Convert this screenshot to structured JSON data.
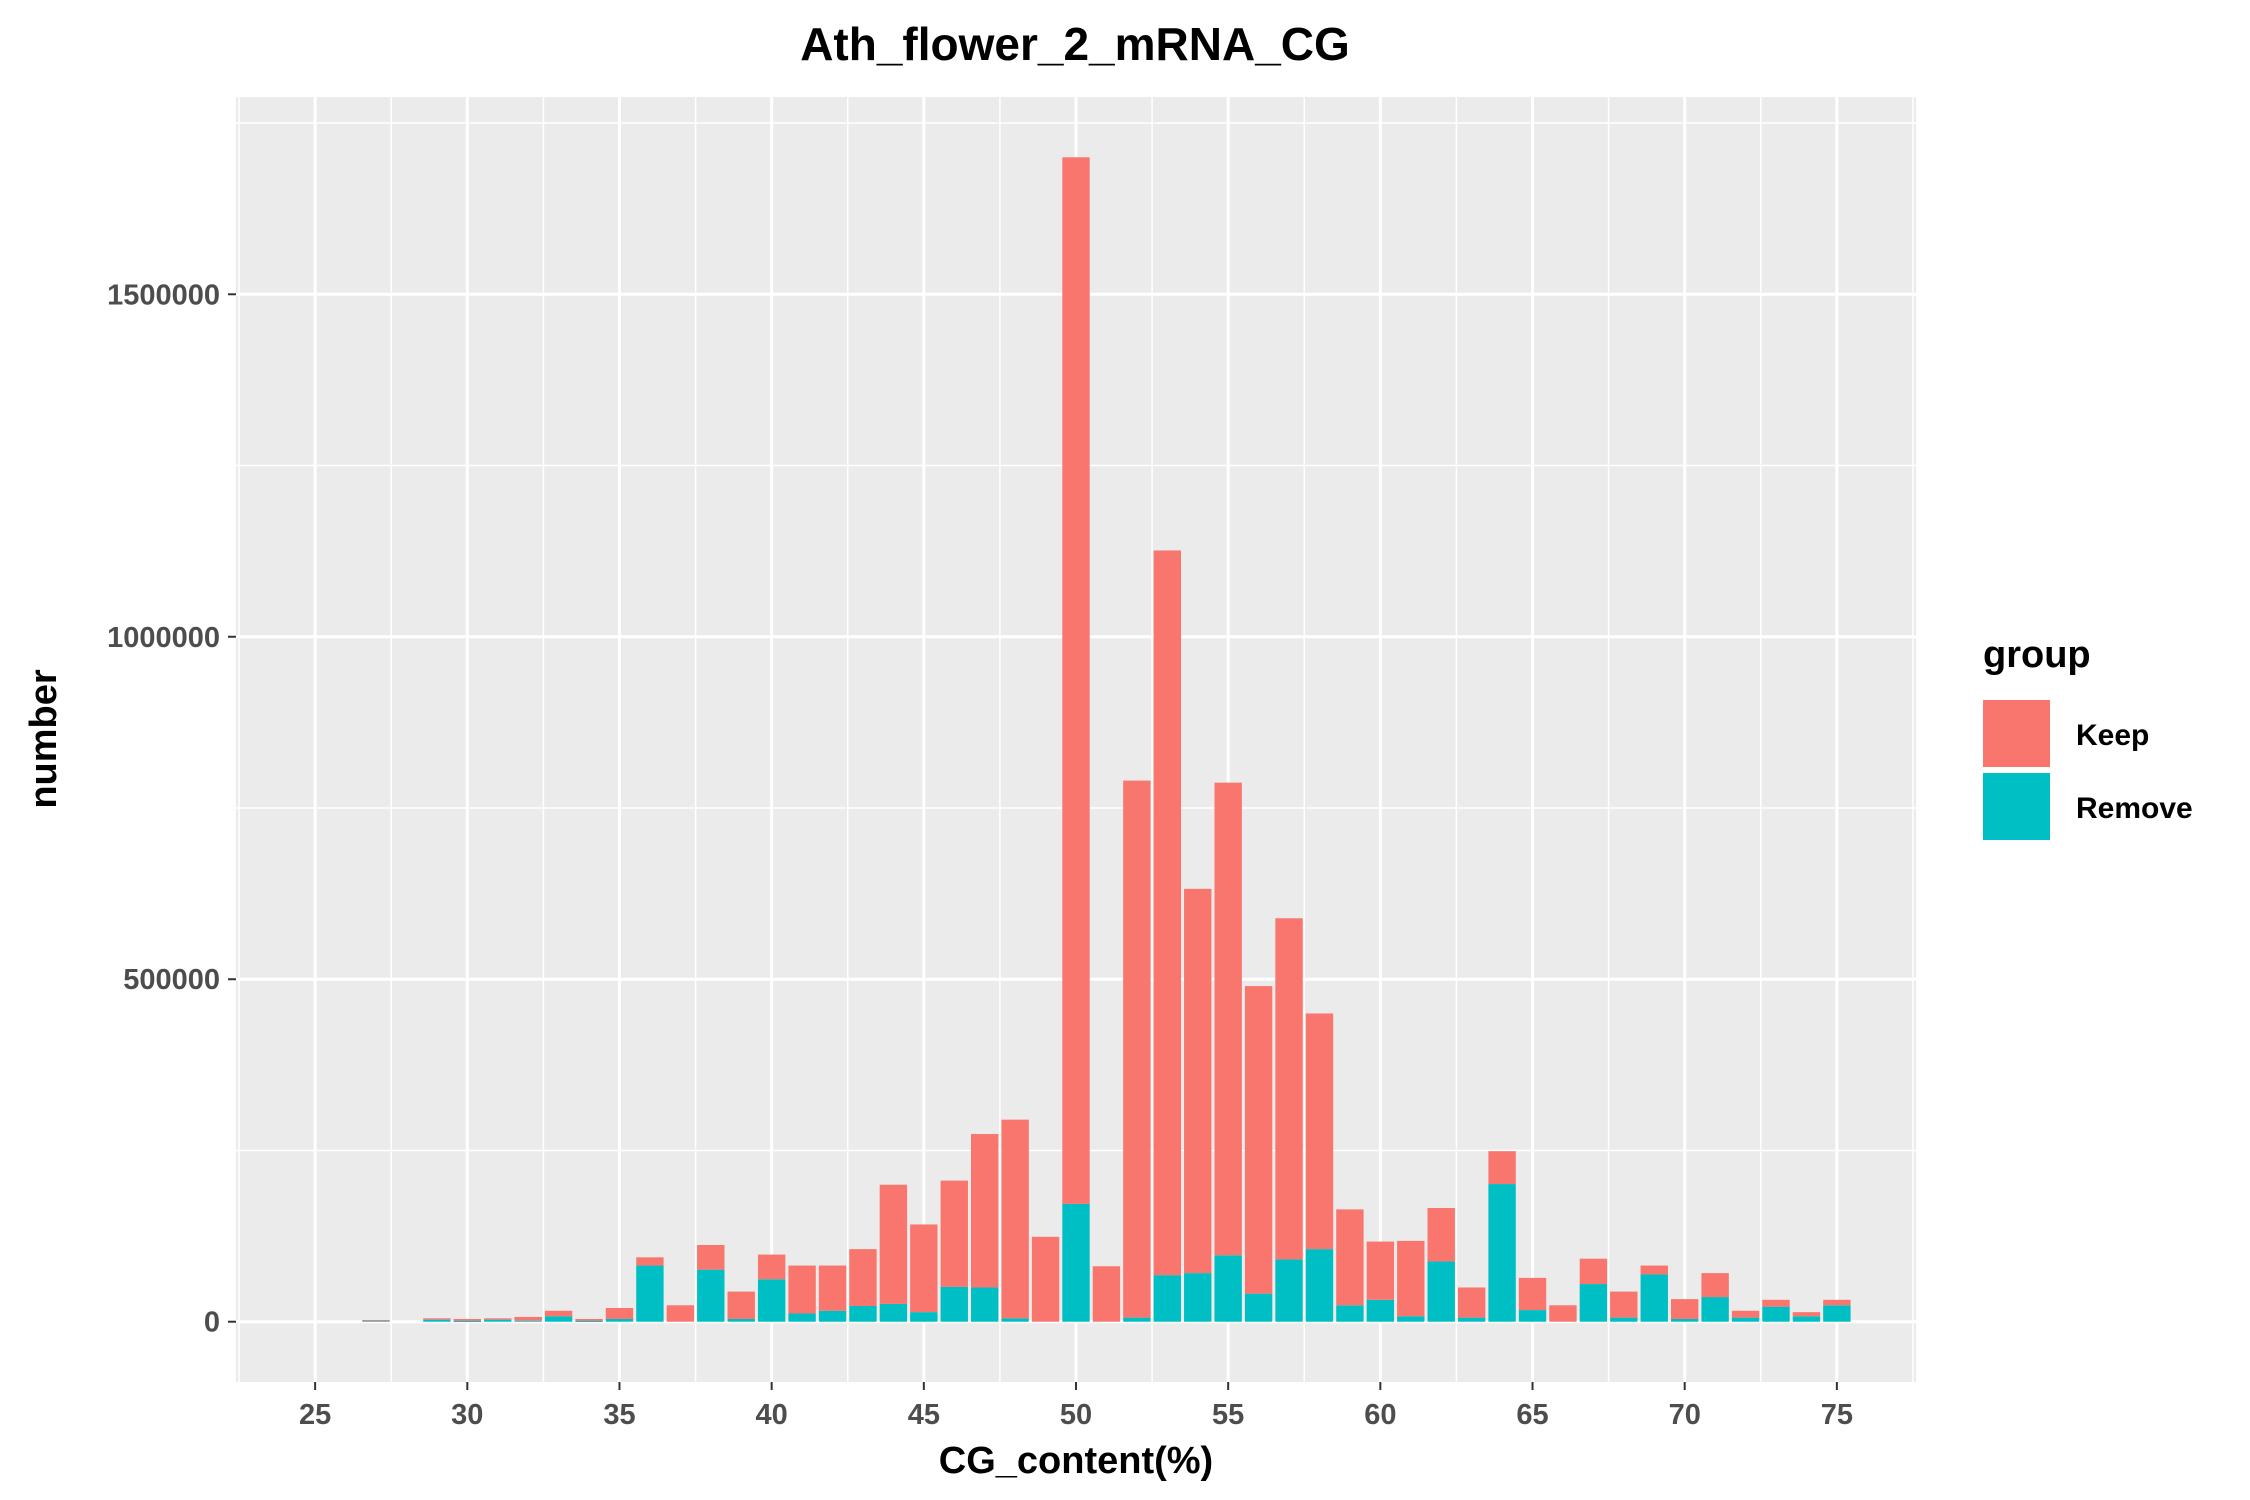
{
  "chart_data": {
    "type": "bar",
    "stacked": true,
    "title": "Ath_flower_2_mRNA_CG",
    "xlabel": "CG_content(%)",
    "ylabel": "number",
    "xlim": [
      22.4,
      77.6
    ],
    "ylim": [
      -88000,
      1788000
    ],
    "x_ticks": [
      25,
      30,
      35,
      40,
      45,
      50,
      55,
      60,
      65,
      70,
      75
    ],
    "y_ticks": [
      0,
      500000,
      1000000,
      1500000
    ],
    "y_tick_labels": [
      "0",
      "500000",
      "1000000",
      "1500000"
    ],
    "grid": true,
    "legend": {
      "title": "group",
      "position": "right",
      "entries": [
        {
          "name": "Keep",
          "color": "#F8766D"
        },
        {
          "name": "Remove",
          "color": "#00BFC4"
        }
      ]
    },
    "x": [
      25,
      26,
      27,
      28,
      29,
      30,
      31,
      32,
      33,
      34,
      35,
      36,
      37,
      38,
      39,
      40,
      41,
      42,
      43,
      44,
      45,
      46,
      47,
      48,
      49,
      50,
      51,
      52,
      53,
      54,
      55,
      56,
      57,
      58,
      59,
      60,
      61,
      62,
      63,
      64,
      65,
      66,
      67,
      68,
      69,
      70,
      71,
      72,
      73,
      74,
      75
    ],
    "series": [
      {
        "name": "Remove",
        "color": "#00BFC4",
        "values": [
          0,
          0,
          1500,
          0,
          3000,
          1000,
          3000,
          1500,
          8000,
          1000,
          4000,
          82000,
          0,
          76000,
          4000,
          62000,
          12000,
          16000,
          23000,
          26000,
          14000,
          51000,
          50000,
          5000,
          0,
          172000,
          0,
          6000,
          68000,
          71000,
          97000,
          41000,
          91000,
          106000,
          24000,
          32000,
          8000,
          88000,
          6000,
          201000,
          17000,
          0,
          55000,
          6000,
          69000,
          4000,
          36000,
          6000,
          22000,
          8000,
          24000
        ]
      },
      {
        "name": "Keep",
        "color": "#F8766D",
        "values": [
          0,
          0,
          1000,
          0,
          2000,
          3000,
          2000,
          5500,
          8000,
          3000,
          16000,
          12000,
          24000,
          36000,
          40000,
          36000,
          70000,
          66000,
          83000,
          174000,
          128000,
          155000,
          224000,
          290000,
          124000,
          1528000,
          81000,
          784000,
          1058000,
          561000,
          690000,
          449000,
          498000,
          344000,
          140000,
          85000,
          110000,
          78000,
          44000,
          48000,
          47000,
          24000,
          37000,
          38000,
          13000,
          29000,
          35000,
          10000,
          10000,
          6000,
          8000
        ]
      }
    ]
  }
}
